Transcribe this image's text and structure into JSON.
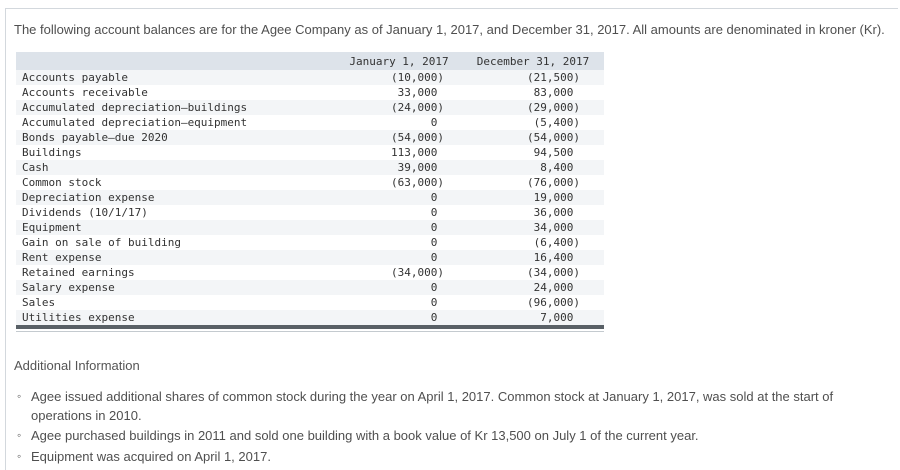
{
  "page": {
    "intro": "The following account balances are for the Agee Company as of January 1, 2017, and December 31, 2017. All amounts are denominated in kroner (Kr)."
  },
  "table": {
    "col1_header": "January 1, 2017",
    "col2_header": "December 31, 2017",
    "rows": [
      [
        "Accounts payable",
        "(10,000)",
        "(21,500)"
      ],
      [
        "Accounts receivable",
        "33,000",
        "83,000"
      ],
      [
        "Accumulated depreciation—buildings",
        "(24,000)",
        "(29,000)"
      ],
      [
        "Accumulated depreciation—equipment",
        "0",
        "(5,400)"
      ],
      [
        "Bonds payable—due 2020",
        "(54,000)",
        "(54,000)"
      ],
      [
        "Buildings",
        "113,000",
        "94,500"
      ],
      [
        "Cash",
        "39,000",
        "8,400"
      ],
      [
        "Common stock",
        "(63,000)",
        "(76,000)"
      ],
      [
        "Depreciation expense",
        "0",
        "19,000"
      ],
      [
        "Dividends (10/1/17)",
        "0",
        "36,000"
      ],
      [
        "Equipment",
        "0",
        "34,000"
      ],
      [
        "Gain on sale of building",
        "0",
        "(6,400)"
      ],
      [
        "Rent expense",
        "0",
        "16,400"
      ],
      [
        "Retained earnings",
        "(34,000)",
        "(34,000)"
      ],
      [
        "Salary expense",
        "0",
        "24,000"
      ],
      [
        "Sales",
        "0",
        "(96,000)"
      ],
      [
        "Utilities expense",
        "0",
        "7,000"
      ]
    ]
  },
  "additional": {
    "title": "Additional Information",
    "bullet_icon": "◦",
    "bullets": [
      "Agee issued additional shares of common stock during the year on April 1, 2017. Common stock at January 1, 2017, was sold at the start of operations in 2010.",
      "Agee purchased buildings in 2011 and sold one building with a book value of Kr 13,500 on July 1 of the current year.",
      "Equipment was acquired on April 1, 2017."
    ]
  }
}
